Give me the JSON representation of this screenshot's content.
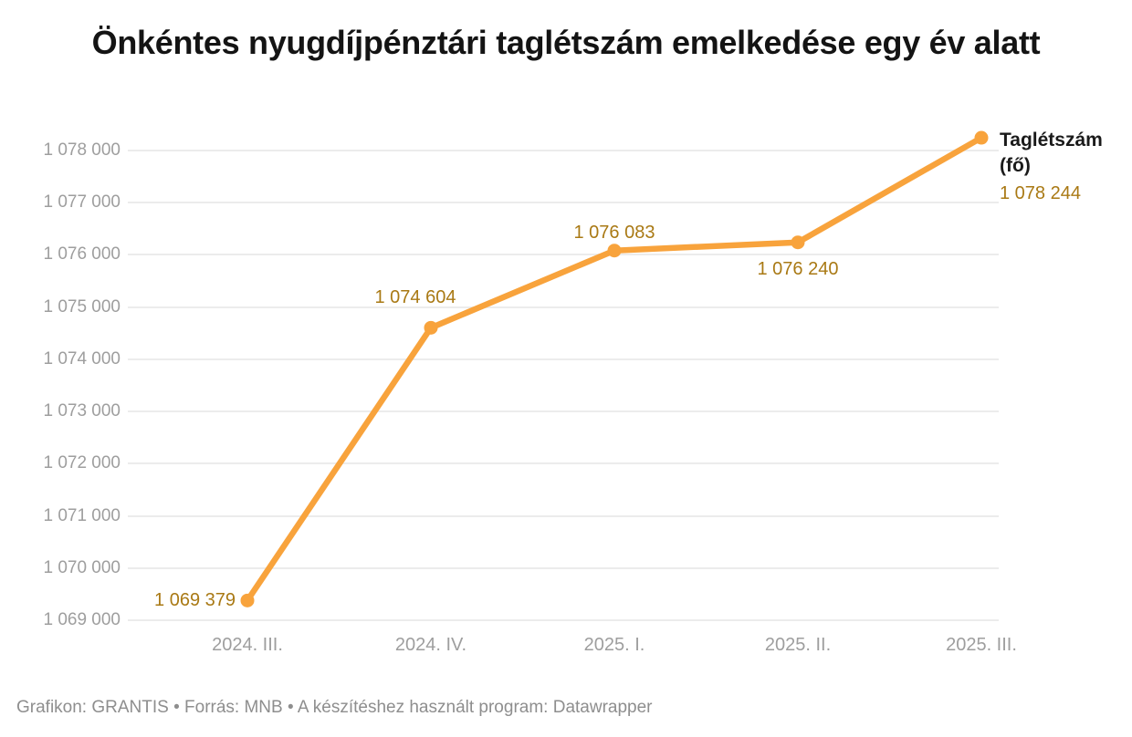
{
  "title": "Önkéntes nyugdíjpénztári taglétszám emelkedése egy év alatt",
  "footer": "Grafikon: GRANTIS • Forrás: MNB • A készítéshez használt program: Datawrapper",
  "legend": {
    "series_label": "Taglétszám",
    "unit_label": "(fő)",
    "last_value": "1 078 244"
  },
  "colors": {
    "line": "#f8a33c",
    "value_label": "#a97914",
    "axis_text": "#9e9e9e",
    "grid": "#ececec",
    "title_text": "#141414",
    "footer_text": "#8e8e8e"
  },
  "chart_data": {
    "type": "line",
    "title": "Önkéntes nyugdíjpénztári taglétszám emelkedése egy év alatt",
    "categories": [
      "2024. III.",
      "2024. IV.",
      "2025. I.",
      "2025. II.",
      "2025. III."
    ],
    "series": [
      {
        "name": "Taglétszám (fő)",
        "values": [
          1069379,
          1074604,
          1076083,
          1076240,
          1078244
        ],
        "value_labels": [
          "1 069 379",
          "1 074 604",
          "1 076 083",
          "1 076 240",
          "1 078 244"
        ],
        "label_positions": [
          "left",
          "above-left",
          "above",
          "below",
          "legend"
        ]
      }
    ],
    "xlabel": "",
    "ylabel": "Taglétszám (fő)",
    "ylim": [
      1069000,
      1078000
    ],
    "ytick_step": 1000,
    "ytick_labels": [
      "1 069 000",
      "1 070 000",
      "1 071 000",
      "1 072 000",
      "1 073 000",
      "1 074 000",
      "1 075 000",
      "1 076 000",
      "1 077 000",
      "1 078 000"
    ],
    "grid": "horizontal",
    "legend_position": "right-of-last-point"
  }
}
